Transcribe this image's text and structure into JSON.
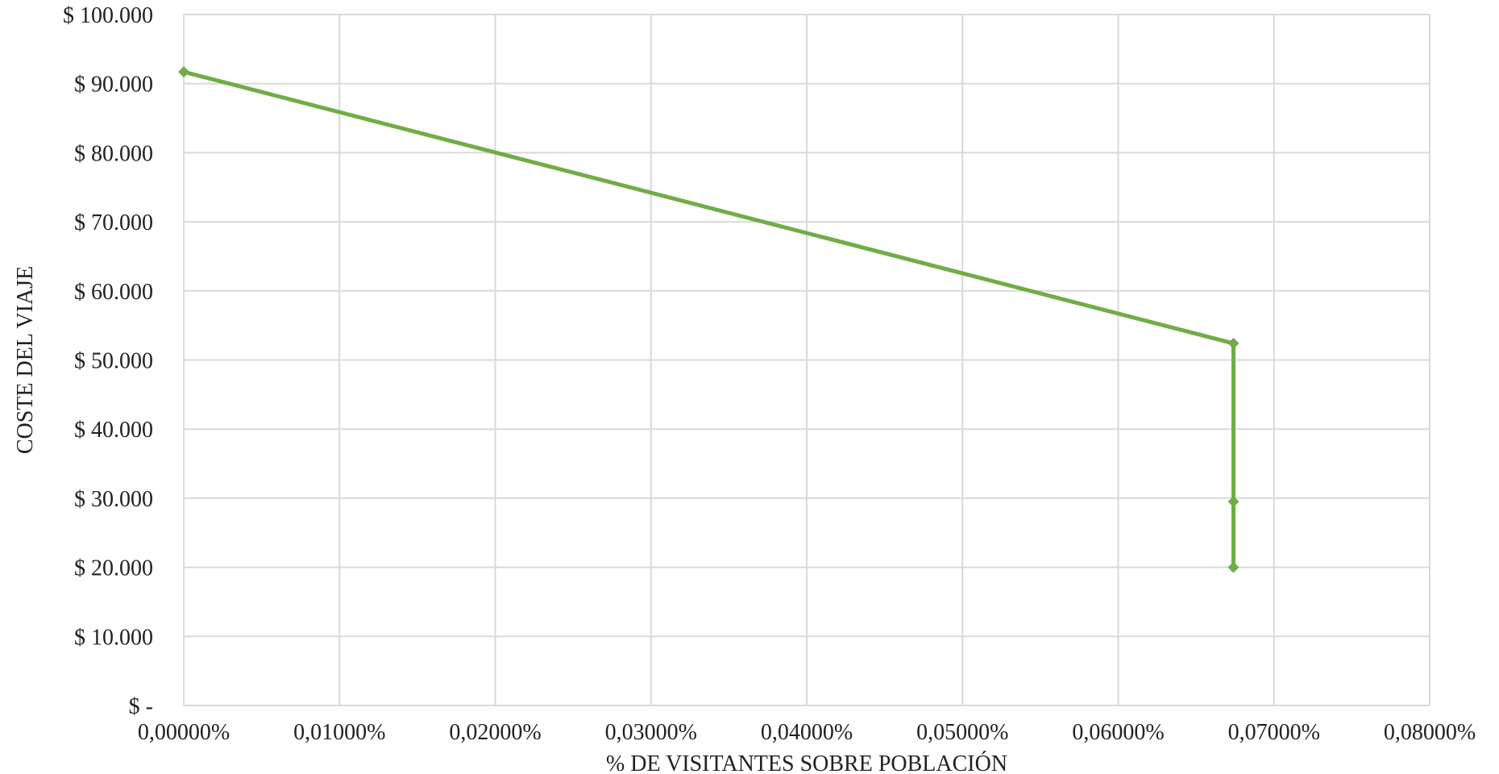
{
  "chart_data": {
    "type": "line",
    "title": "",
    "xlabel": "% DE VISITANTES  SOBRE POBLACIÓN",
    "ylabel": "COSTE DEL VIAJE",
    "xlim": [
      0,
      0.0008
    ],
    "ylim": [
      0,
      100000
    ],
    "x_ticks": [
      0,
      0.0001,
      0.0002,
      0.0003,
      0.0004,
      0.0005,
      0.0006,
      0.0007,
      0.0008
    ],
    "x_tick_labels": [
      "0,00000%",
      "0,01000%",
      "0,02000%",
      "0,03000%",
      "0,04000%",
      "0,05000%",
      "0,06000%",
      "0,07000%",
      "0,08000%"
    ],
    "y_ticks": [
      0,
      10000,
      20000,
      30000,
      40000,
      50000,
      60000,
      70000,
      80000,
      90000,
      100000
    ],
    "y_tick_labels": [
      "$ -",
      "$ 10.000",
      "$ 20.000",
      "$ 30.000",
      "$ 40.000",
      "$ 50.000",
      "$ 60.000",
      "$ 70.000",
      "$ 80.000",
      "$ 90.000",
      "$ 100.000"
    ],
    "grid": true,
    "legend": "none",
    "series": [
      {
        "color": "#70ad47",
        "marker": "diamond",
        "points": [
          {
            "x": 0.0,
            "y": 91700
          },
          {
            "x": 0.000674,
            "y": 52400
          },
          {
            "x": 0.000674,
            "y": 29500
          },
          {
            "x": 0.000674,
            "y": 20000
          }
        ]
      }
    ]
  }
}
